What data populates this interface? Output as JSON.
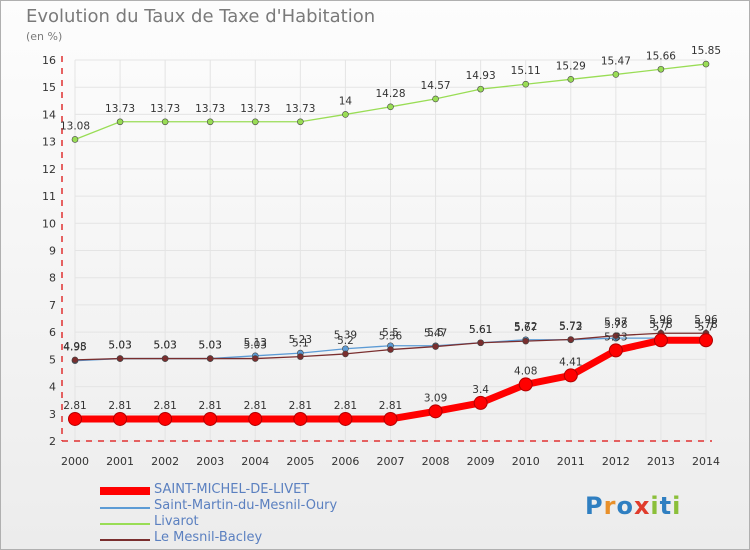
{
  "title": "Evolution du Taux de Taxe d'Habitation",
  "unit": "(en %)",
  "logo": "Proxiti",
  "colors": {
    "axis": "#e03030",
    "grid": "#e4e4e4",
    "label": "#333333"
  },
  "chart_data": {
    "type": "line",
    "x": [
      "2000",
      "2001",
      "2002",
      "2003",
      "2004",
      "2005",
      "2006",
      "2007",
      "2008",
      "2009",
      "2010",
      "2011",
      "2012",
      "2013",
      "2014"
    ],
    "ylim": [
      2,
      16
    ],
    "yticks": [
      2,
      3,
      4,
      5,
      6,
      7,
      8,
      9,
      10,
      11,
      12,
      13,
      14,
      15,
      16
    ],
    "grid": true,
    "legend_position": "bottom-left",
    "series": [
      {
        "name": "Livarot",
        "color": "#99dd55",
        "values": [
          13.08,
          13.73,
          13.73,
          13.73,
          13.73,
          13.73,
          14,
          14.28,
          14.57,
          14.93,
          15.11,
          15.29,
          15.47,
          15.66,
          15.85
        ],
        "labels": [
          "13.08",
          "13.73",
          "13.73",
          "13.73",
          "13.73",
          "13.73",
          "14",
          "14.28",
          "14.57",
          "14.93",
          "15.11",
          "15.29",
          "15.47",
          "15.66",
          "15.85"
        ]
      },
      {
        "name": "Saint-Martin-du-Mesnil-Oury",
        "color": "#5c9bd5",
        "values": [
          4.95,
          5.03,
          5.03,
          5.03,
          5.13,
          5.23,
          5.39,
          5.5,
          5.5,
          5.61,
          5.72,
          5.72,
          5.78,
          5.78,
          5.78
        ],
        "labels": [
          "4.95",
          "5.03",
          "5.03",
          "5.03",
          "5.13",
          "5.23",
          "5.39",
          "5.5",
          "5.5",
          "5.61",
          "5.72",
          "5.72",
          "5.78",
          "5.78",
          "5.78"
        ]
      },
      {
        "name": "Le Mesnil-Bacley",
        "color": "#7a2e2e",
        "values": [
          4.98,
          5.03,
          5.03,
          5.03,
          5.03,
          5.1,
          5.2,
          5.36,
          5.47,
          5.61,
          5.67,
          5.73,
          5.87,
          5.96,
          5.96
        ],
        "labels": [
          "4.98",
          "5.03",
          "5.03",
          "5.03",
          "5.03",
          "5.1",
          "5.2",
          "5.36",
          "5.47",
          "5.61",
          "5.67",
          "5.73",
          "5.87",
          "5.96",
          "5.96"
        ]
      },
      {
        "name": "SAINT-MICHEL-DE-LIVET",
        "color": "#ff0000",
        "values": [
          2.81,
          2.81,
          2.81,
          2.81,
          2.81,
          2.81,
          2.81,
          2.81,
          3.09,
          3.4,
          4.08,
          4.41,
          5.33,
          5.7,
          5.7
        ],
        "labels": [
          "2.81",
          "2.81",
          "2.81",
          "2.81",
          "2.81",
          "2.81",
          "2.81",
          "2.81",
          "3.09",
          "3.4",
          "4.08",
          "4.41",
          "5.33",
          "5.7",
          "5.7"
        ]
      }
    ]
  },
  "legend": [
    {
      "label": "SAINT-MICHEL-DE-LIVET",
      "color": "#ff0000",
      "thick": true
    },
    {
      "label": "Saint-Martin-du-Mesnil-Oury",
      "color": "#5c9bd5",
      "thick": false
    },
    {
      "label": "Livarot",
      "color": "#99dd55",
      "thick": false
    },
    {
      "label": "Le Mesnil-Bacley",
      "color": "#7a2e2e",
      "thick": false
    }
  ]
}
